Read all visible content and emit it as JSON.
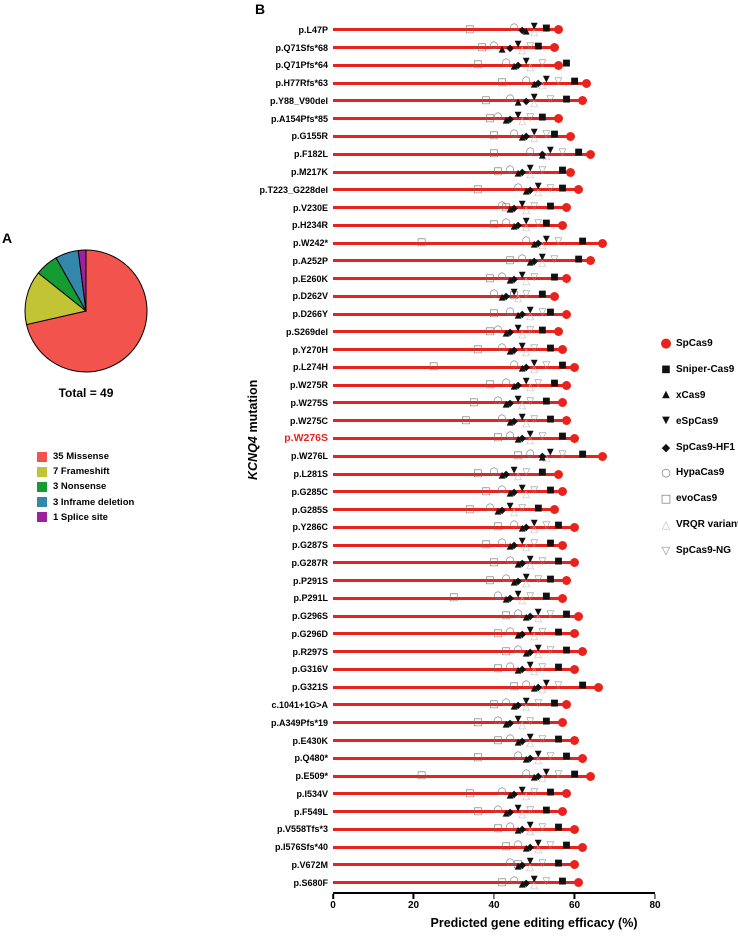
{
  "panel_a": {
    "label": "A",
    "total_label": "Total = 49"
  },
  "panel_b": {
    "label": "B",
    "y_axis_label_italic": "KCNQ4",
    "y_axis_label_rest": " mutation",
    "x_axis_label": "Predicted gene editing efficacy (%)",
    "highlighted_mutation": "p.W276S",
    "colors": {
      "lollipop_red": "#e8231d",
      "highlight_label": "#e8231d"
    }
  },
  "chart_data": [
    {
      "type": "pie",
      "title": "Total = 49",
      "labels": [
        "35 Missense",
        "7 Frameshift",
        "3 Nonsense",
        "3 Inframe deletion",
        "1 Splice site"
      ],
      "values": [
        35,
        7,
        3,
        3,
        1
      ],
      "colors": [
        "#f2544d",
        "#c2c435",
        "#149b32",
        "#3387ab",
        "#9d209d"
      ],
      "start_angle": "top",
      "direction": "clockwise"
    },
    {
      "type": "scatter",
      "subtype": "lollipop",
      "xlabel": "Predicted gene editing efficacy (%)",
      "ylabel": "KCNQ4 mutation",
      "xlim": [
        0,
        80
      ],
      "x_ticks": [
        0,
        20,
        40,
        60,
        80
      ],
      "highlighted_category": "p.W276S",
      "categories": [
        "p.L47P",
        "p.Q71Sfs*68",
        "p.Q71Pfs*64",
        "p.H77Rfs*63",
        "p.Y88_V90del",
        "p.A154Pfs*85",
        "p.G155R",
        "p.F182L",
        "p.M217K",
        "p.T223_G228del",
        "p.V230E",
        "p.H234R",
        "p.W242*",
        "p.A252P",
        "p.E260K",
        "p.D262V",
        "p.D266Y",
        "p.S269del",
        "p.Y270H",
        "p.L274H",
        "p.W275R",
        "p.W275S",
        "p.W275C",
        "p.W276S",
        "p.W276L",
        "p.L281S",
        "p.G285C",
        "p.G285S",
        "p.Y286C",
        "p.G287S",
        "p.G287R",
        "p.P291S",
        "p.P291L",
        "p.G296S",
        "p.G296D",
        "p.R297S",
        "p.G316V",
        "p.G321S",
        "c.1041+1G>A",
        "p.A349Pfs*19",
        "p.E430K",
        "p.Q480*",
        "p.E509*",
        "p.I534V",
        "p.F549L",
        "p.V558Tfs*3",
        "p.I576Sfs*40",
        "p.V672M",
        "p.S680F"
      ],
      "series": [
        {
          "name": "SpCas9",
          "marker": "circle-filled-red",
          "values": [
            56,
            55,
            56,
            63,
            62,
            56,
            59,
            64,
            59,
            61,
            58,
            57,
            67,
            64,
            58,
            55,
            58,
            56,
            57,
            60,
            58,
            57,
            58,
            60,
            67,
            56,
            57,
            55,
            60,
            57,
            60,
            58,
            57,
            61,
            60,
            62,
            60,
            66,
            58,
            57,
            60,
            62,
            64,
            58,
            57,
            60,
            62,
            60,
            61
          ]
        },
        {
          "name": "Sniper-Cas9",
          "marker": "square-filled-black",
          "values": [
            53,
            51,
            58,
            60,
            58,
            52,
            55,
            61,
            57,
            57,
            54,
            53,
            62,
            61,
            55,
            52,
            54,
            52,
            54,
            57,
            55,
            53,
            54,
            57,
            62,
            52,
            54,
            51,
            56,
            54,
            56,
            54,
            53,
            58,
            56,
            58,
            56,
            62,
            55,
            53,
            56,
            58,
            60,
            54,
            53,
            56,
            58,
            56,
            57
          ]
        },
        {
          "name": "xCas9",
          "marker": "triangle-up-filled-black",
          "values": [
            48,
            42,
            45,
            50,
            46,
            43,
            47,
            52,
            46,
            48,
            44,
            45,
            50,
            49,
            44,
            42,
            46,
            43,
            44,
            47,
            45,
            43,
            44,
            46,
            52,
            42,
            44,
            41,
            47,
            44,
            46,
            45,
            43,
            48,
            46,
            48,
            46,
            50,
            45,
            43,
            46,
            48,
            50,
            44,
            43,
            46,
            48,
            46,
            47
          ]
        },
        {
          "name": "eSpCas9",
          "marker": "triangle-down-filled-black",
          "values": [
            50,
            46,
            48,
            53,
            50,
            46,
            50,
            54,
            49,
            51,
            47,
            48,
            53,
            52,
            47,
            45,
            49,
            46,
            47,
            50,
            48,
            46,
            47,
            49,
            54,
            45,
            47,
            44,
            50,
            47,
            49,
            48,
            46,
            51,
            49,
            51,
            49,
            53,
            48,
            46,
            49,
            51,
            53,
            47,
            46,
            49,
            51,
            49,
            50
          ]
        },
        {
          "name": "SpCas9-HF1",
          "marker": "diamond-filled-black",
          "values": [
            47,
            44,
            46,
            51,
            48,
            44,
            48,
            52,
            47,
            49,
            45,
            46,
            51,
            50,
            45,
            43,
            47,
            44,
            45,
            48,
            46,
            44,
            45,
            47,
            52,
            43,
            45,
            42,
            48,
            45,
            47,
            46,
            44,
            49,
            47,
            49,
            47,
            51,
            46,
            44,
            47,
            49,
            51,
            45,
            44,
            47,
            49,
            47,
            48
          ]
        },
        {
          "name": "HypaCas9",
          "marker": "circle-open-gray",
          "values": [
            45,
            40,
            43,
            48,
            44,
            41,
            45,
            49,
            44,
            46,
            42,
            43,
            48,
            47,
            42,
            40,
            44,
            41,
            42,
            45,
            43,
            41,
            42,
            44,
            49,
            40,
            42,
            39,
            45,
            42,
            44,
            43,
            41,
            46,
            44,
            46,
            44,
            48,
            43,
            41,
            44,
            46,
            48,
            42,
            41,
            44,
            46,
            44,
            45
          ]
        },
        {
          "name": "evoCas9",
          "marker": "square-open-gray",
          "values": [
            34,
            37,
            36,
            42,
            38,
            39,
            40,
            40,
            41,
            36,
            43,
            40,
            22,
            44,
            39,
            45,
            40,
            39,
            36,
            25,
            39,
            35,
            33,
            41,
            46,
            36,
            38,
            34,
            41,
            38,
            40,
            39,
            30,
            43,
            41,
            43,
            41,
            45,
            40,
            36,
            41,
            36,
            22,
            34,
            36,
            41,
            43,
            46,
            42
          ]
        },
        {
          "name": "VRQR variant",
          "marker": "triangle-up-open-lightgray",
          "values": [
            50,
            47,
            49,
            52,
            50,
            47,
            50,
            53,
            49,
            51,
            48,
            48,
            52,
            52,
            48,
            46,
            49,
            47,
            48,
            50,
            49,
            47,
            48,
            49,
            53,
            46,
            48,
            45,
            50,
            48,
            49,
            48,
            47,
            51,
            50,
            51,
            50,
            52,
            48,
            47,
            49,
            51,
            52,
            48,
            47,
            49,
            51,
            49,
            50
          ]
        },
        {
          "name": "SpCas9-NG",
          "marker": "triangle-down-open-gray",
          "values": [
            53,
            49,
            52,
            56,
            54,
            49,
            53,
            57,
            52,
            54,
            50,
            51,
            56,
            55,
            50,
            48,
            52,
            49,
            50,
            53,
            51,
            49,
            50,
            52,
            57,
            48,
            50,
            47,
            53,
            50,
            52,
            51,
            49,
            54,
            52,
            54,
            52,
            56,
            51,
            49,
            52,
            54,
            56,
            50,
            49,
            52,
            54,
            52,
            53
          ]
        }
      ]
    }
  ]
}
